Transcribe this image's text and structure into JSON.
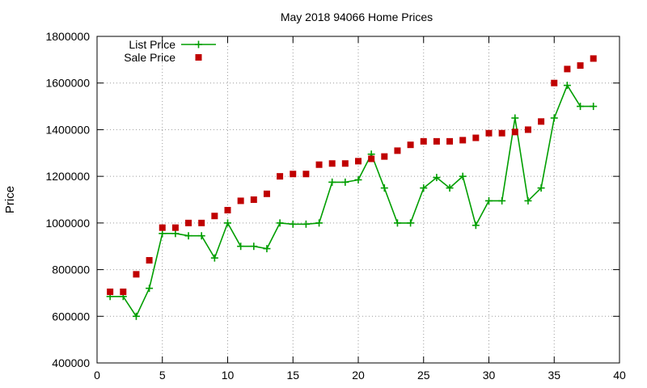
{
  "chart_data": {
    "type": "line",
    "title": "May 2018 94066 Home Prices",
    "xlabel": "",
    "ylabel": "Price",
    "xlim": [
      0,
      40
    ],
    "ylim": [
      400000,
      1800000
    ],
    "x_ticks": [
      0,
      5,
      10,
      15,
      20,
      25,
      30,
      35,
      40
    ],
    "y_ticks": [
      400000,
      600000,
      800000,
      1000000,
      1200000,
      1400000,
      1600000,
      1800000
    ],
    "grid": true,
    "legend_position": "top-left",
    "series": [
      {
        "name": "List Price",
        "style": "line-with-plus-markers",
        "color": "#009e00",
        "x": [
          1,
          2,
          3,
          4,
          5,
          6,
          7,
          8,
          9,
          10,
          11,
          12,
          13,
          14,
          15,
          16,
          17,
          18,
          19,
          20,
          21,
          22,
          23,
          24,
          25,
          26,
          27,
          28,
          29,
          30,
          31,
          32,
          33,
          34,
          35,
          36,
          37,
          38
        ],
        "values": [
          685000,
          685000,
          600000,
          720000,
          955000,
          955000,
          945000,
          945000,
          850000,
          1000000,
          900000,
          900000,
          890000,
          1000000,
          995000,
          995000,
          1000000,
          1175000,
          1175000,
          1185000,
          1295000,
          1150000,
          1000000,
          1000000,
          1150000,
          1195000,
          1150000,
          1200000,
          990000,
          1095000,
          1095000,
          1450000,
          1095000,
          1150000,
          1450000,
          1590000,
          1500000,
          1500000
        ]
      },
      {
        "name": "Sale Price",
        "style": "square-markers",
        "color": "#c00000",
        "x": [
          1,
          2,
          3,
          4,
          5,
          6,
          7,
          8,
          9,
          10,
          11,
          12,
          13,
          14,
          15,
          16,
          17,
          18,
          19,
          20,
          21,
          22,
          23,
          24,
          25,
          26,
          27,
          28,
          29,
          30,
          31,
          32,
          33,
          34,
          35,
          36,
          37,
          38
        ],
        "values": [
          705000,
          705000,
          780000,
          840000,
          980000,
          980000,
          1000000,
          1000000,
          1030000,
          1055000,
          1095000,
          1100000,
          1125000,
          1200000,
          1210000,
          1210000,
          1250000,
          1255000,
          1255000,
          1265000,
          1275000,
          1285000,
          1310000,
          1335000,
          1350000,
          1350000,
          1350000,
          1355000,
          1365000,
          1385000,
          1385000,
          1390000,
          1400000,
          1435000,
          1600000,
          1660000,
          1675000,
          1705000
        ]
      }
    ]
  }
}
